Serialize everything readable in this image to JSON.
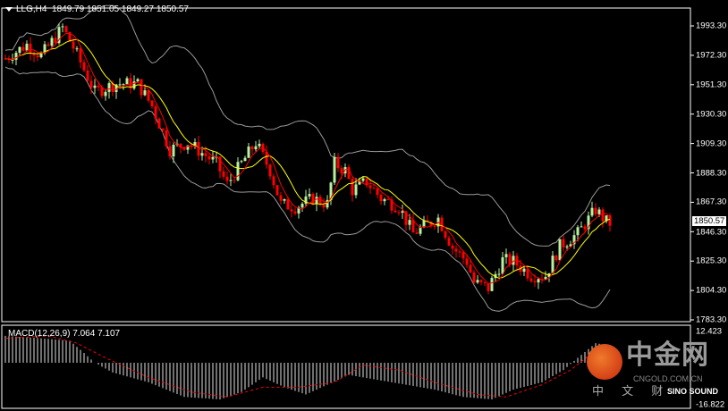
{
  "header": {
    "symbol": "LLG,H4",
    "open": "1849.79",
    "high": "1851.05",
    "low": "1849.27",
    "close": "1850.57"
  },
  "macd": {
    "label": "MACD(12,26,9)",
    "main": "7.064",
    "signal": "7.107"
  },
  "watermark": {
    "brand": "中金网",
    "url": "CNGOLD.COM.CN",
    "tagline": "中 文 财",
    "partner": "SINO SOUND"
  },
  "colors": {
    "bull": "#b8f0a0",
    "bear": "#ff0000",
    "ma_fast": "#ff0000",
    "ma_slow": "#ffff00",
    "bands": "#9a9a9a",
    "macd_hist": "#e0e0e0",
    "macd_signal": "#ff0000"
  },
  "chart_data": [
    {
      "type": "candlestick",
      "title": "LLG,H4",
      "current_price": "1850.57",
      "y_ticks": [
        "1993.30",
        "1972.30",
        "1951.30",
        "1930.30",
        "1909.30",
        "1888.30",
        "1867.30",
        "1846.30",
        "1825.30",
        "1804.30",
        "1783.30"
      ],
      "ylim": [
        1783.3,
        1993.3
      ],
      "bars": 170,
      "close_path": [
        [
          0,
          1970
        ],
        [
          6,
          1980
        ],
        [
          10,
          1972
        ],
        [
          16,
          1992
        ],
        [
          19,
          1978
        ],
        [
          22,
          1962
        ],
        [
          25,
          1946
        ],
        [
          31,
          1952
        ],
        [
          37,
          1952
        ],
        [
          41,
          1936
        ],
        [
          46,
          1905
        ],
        [
          51,
          1910
        ],
        [
          59,
          1895
        ],
        [
          62,
          1880
        ],
        [
          66,
          1895
        ],
        [
          70,
          1910
        ],
        [
          74,
          1890
        ],
        [
          77,
          1866
        ],
        [
          81,
          1864
        ],
        [
          86,
          1870
        ],
        [
          90,
          1866
        ],
        [
          92,
          1895
        ],
        [
          95,
          1890
        ],
        [
          97,
          1876
        ],
        [
          101,
          1882
        ],
        [
          105,
          1870
        ],
        [
          110,
          1864
        ],
        [
          114,
          1845
        ],
        [
          117,
          1850
        ],
        [
          121,
          1856
        ],
        [
          125,
          1835
        ],
        [
          129,
          1825
        ],
        [
          131,
          1810
        ],
        [
          135,
          1806
        ],
        [
          139,
          1826
        ],
        [
          142,
          1825
        ],
        [
          147,
          1815
        ],
        [
          151,
          1815
        ],
        [
          155,
          1836
        ],
        [
          160,
          1845
        ],
        [
          165,
          1862
        ],
        [
          169,
          1850.57
        ]
      ]
    },
    {
      "type": "bar",
      "title": "MACD(12,26,9)",
      "ylim": [
        -16.822,
        12.423
      ],
      "y_ticks": [
        "12.423",
        "-16.822"
      ],
      "hist_path": [
        [
          0,
          11
        ],
        [
          10,
          10
        ],
        [
          18,
          9
        ],
        [
          22,
          4
        ],
        [
          25,
          0
        ],
        [
          30,
          -4
        ],
        [
          40,
          -8
        ],
        [
          50,
          -14
        ],
        [
          60,
          -15
        ],
        [
          66,
          -12
        ],
        [
          72,
          -6
        ],
        [
          78,
          -10
        ],
        [
          84,
          -13
        ],
        [
          90,
          -9
        ],
        [
          96,
          -5
        ],
        [
          104,
          -7
        ],
        [
          112,
          -9
        ],
        [
          120,
          -11
        ],
        [
          128,
          -14
        ],
        [
          136,
          -15
        ],
        [
          142,
          -11
        ],
        [
          150,
          -8
        ],
        [
          156,
          -3
        ],
        [
          160,
          2
        ],
        [
          165,
          8
        ],
        [
          169,
          7
        ]
      ],
      "signal_path": [
        [
          0,
          10
        ],
        [
          12,
          11
        ],
        [
          20,
          8
        ],
        [
          28,
          2
        ],
        [
          40,
          -6
        ],
        [
          52,
          -12
        ],
        [
          62,
          -14
        ],
        [
          72,
          -10
        ],
        [
          82,
          -10
        ],
        [
          92,
          -8
        ],
        [
          100,
          -1
        ],
        [
          110,
          -3
        ],
        [
          120,
          -8
        ],
        [
          132,
          -13
        ],
        [
          140,
          -14
        ],
        [
          150,
          -9
        ],
        [
          158,
          -3
        ],
        [
          164,
          4
        ],
        [
          169,
          7
        ]
      ]
    }
  ]
}
